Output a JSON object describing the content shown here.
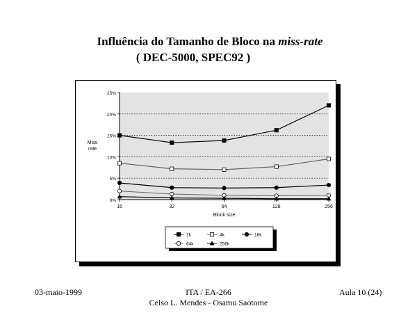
{
  "slide": {
    "title_main": "Influência do Tamanho de Bloco na ",
    "title_italic": "miss-rate",
    "subtitle": "( DEC-5000, SPEC92 )"
  },
  "footer": {
    "date": "03-maio-1999",
    "course": "ITA / EA-266",
    "authors": "Celso L. Mendes - Osamu Saotome",
    "page": "Aula 10 (24)"
  },
  "chart_data": {
    "type": "line",
    "xlabel": "Block size",
    "ylabel": "Miss rate",
    "categories": [
      "16",
      "32",
      "64",
      "128",
      "256"
    ],
    "yticks": [
      "25%",
      "20%",
      "15%",
      "10%",
      "5%",
      "0%"
    ],
    "ylim": [
      0,
      25
    ],
    "grid": "horizontal-dotted",
    "legend_position": "bottom",
    "series": [
      {
        "name": "1k",
        "marker": "filled-square",
        "values": [
          15.0,
          13.3,
          13.8,
          16.2,
          22.0
        ]
      },
      {
        "name": "4k",
        "marker": "open-square",
        "values": [
          8.5,
          7.2,
          7.0,
          7.7,
          9.5
        ]
      },
      {
        "name": "16k",
        "marker": "filled-circle",
        "values": [
          3.9,
          2.8,
          2.7,
          2.8,
          3.4
        ]
      },
      {
        "name": "64k",
        "marker": "open-circle",
        "values": [
          2.0,
          1.3,
          1.0,
          0.9,
          1.0
        ]
      },
      {
        "name": "256k",
        "marker": "triangle",
        "values": [
          0.7,
          0.4,
          0.3,
          0.2,
          0.2
        ]
      }
    ]
  }
}
